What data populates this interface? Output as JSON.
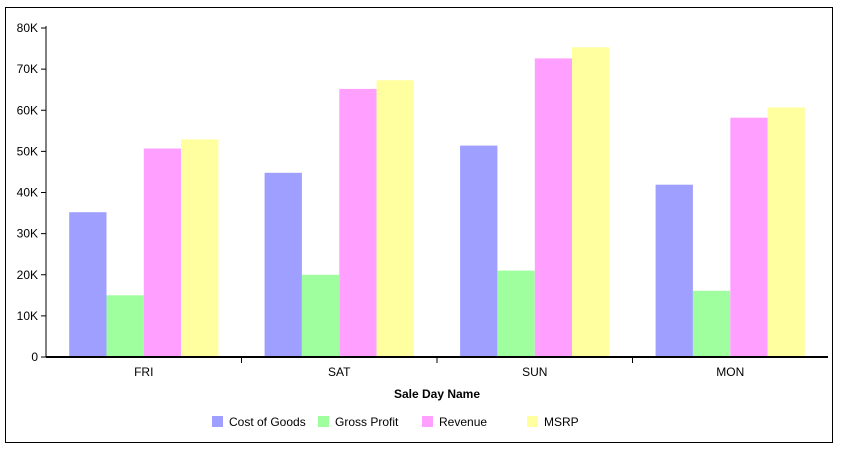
{
  "chart_data": {
    "type": "bar",
    "title": "",
    "xlabel": "Sale Day Name",
    "ylabel": "",
    "categories": [
      "FRI",
      "SAT",
      "SUN",
      "MON"
    ],
    "ylim": [
      0,
      80000
    ],
    "yticks": [
      {
        "value": 0,
        "label": "0"
      },
      {
        "value": 10000,
        "label": "10K"
      },
      {
        "value": 20000,
        "label": "20K"
      },
      {
        "value": 30000,
        "label": "30K"
      },
      {
        "value": 40000,
        "label": "40K"
      },
      {
        "value": 50000,
        "label": "50K"
      },
      {
        "value": 60000,
        "label": "60K"
      },
      {
        "value": 70000,
        "label": "70K"
      },
      {
        "value": 80000,
        "label": "80K"
      }
    ],
    "grid": false,
    "legend_position": "bottom",
    "series": [
      {
        "name": "Cost of Goods",
        "color": "#9F9FFF",
        "values": [
          35200,
          44800,
          51400,
          41900
        ]
      },
      {
        "name": "Gross Profit",
        "color": "#9FFF9F",
        "values": [
          15000,
          20000,
          21000,
          16100
        ]
      },
      {
        "name": "Revenue",
        "color": "#FF9FFF",
        "values": [
          50700,
          65200,
          72600,
          58200
        ]
      },
      {
        "name": "MSRP",
        "color": "#FFFF9F",
        "values": [
          52900,
          67300,
          75300,
          60700
        ]
      }
    ]
  }
}
